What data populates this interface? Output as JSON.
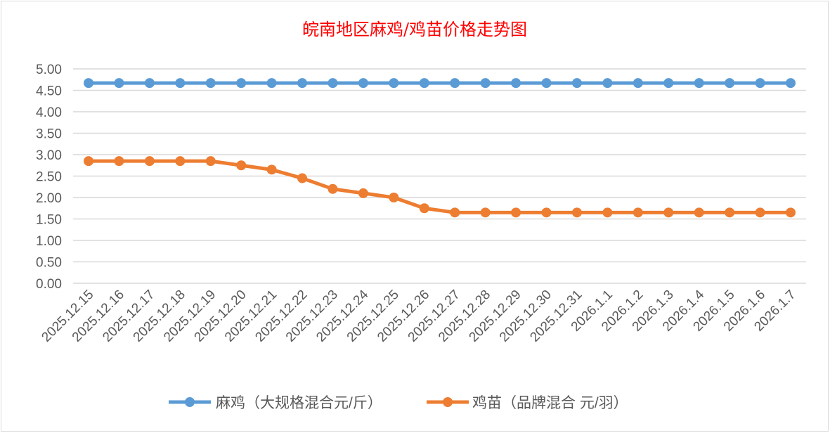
{
  "chart_data": {
    "type": "line",
    "title": "皖南地区麻鸡/鸡苗价格走势图",
    "xlabel": "",
    "ylabel": "",
    "ylim": [
      0,
      5
    ],
    "yticks": [
      "0.00",
      "0.50",
      "1.00",
      "1.50",
      "2.00",
      "2.50",
      "3.00",
      "3.50",
      "4.00",
      "4.50",
      "5.00"
    ],
    "grid": true,
    "legend_position": "bottom",
    "categories": [
      "2025.12.15",
      "2025.12.16",
      "2025.12.17",
      "2025.12.18",
      "2025.12.19",
      "2025.12.20",
      "2025.12.21",
      "2025.12.22",
      "2025.12.23",
      "2025.12.24",
      "2025.12.25",
      "2025.12.26",
      "2025.12.27",
      "2025.12.28",
      "2025.12.29",
      "2025.12.30",
      "2025.12.31",
      "2026.1.1",
      "2026.1.2",
      "2026.1.3",
      "2026.1.4",
      "2026.1.5",
      "2026.1.6",
      "2026.1.7"
    ],
    "series": [
      {
        "name": "麻鸡（大规格混合元/斤）",
        "color": "#5b9bd5",
        "values": [
          4.67,
          4.67,
          4.67,
          4.67,
          4.67,
          4.67,
          4.67,
          4.67,
          4.67,
          4.67,
          4.67,
          4.67,
          4.67,
          4.67,
          4.67,
          4.67,
          4.67,
          4.67,
          4.67,
          4.67,
          4.67,
          4.67,
          4.67,
          4.67
        ]
      },
      {
        "name": "鸡苗（品牌混合 元/羽）",
        "color": "#ed7d31",
        "values": [
          2.85,
          2.85,
          2.85,
          2.85,
          2.85,
          2.75,
          2.65,
          2.45,
          2.2,
          2.1,
          2.0,
          1.75,
          1.65,
          1.65,
          1.65,
          1.65,
          1.65,
          1.65,
          1.65,
          1.65,
          1.65,
          1.65,
          1.65,
          1.65
        ]
      }
    ]
  }
}
